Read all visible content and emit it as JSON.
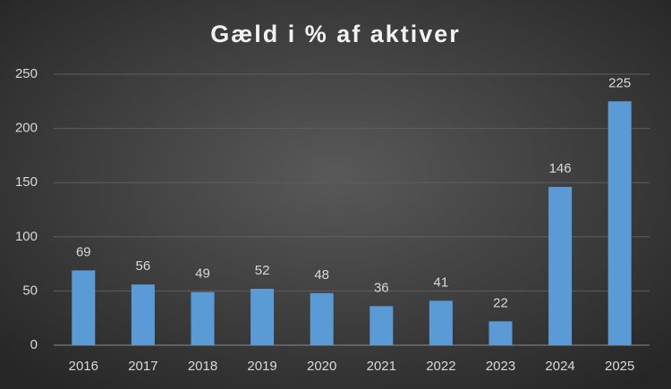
{
  "chart_data": {
    "type": "bar",
    "title": "Gæld i % af aktiver",
    "categories": [
      "2016",
      "2017",
      "2018",
      "2019",
      "2020",
      "2021",
      "2022",
      "2023",
      "2024",
      "2025"
    ],
    "values": [
      69,
      56,
      49,
      52,
      48,
      36,
      41,
      22,
      146,
      225
    ],
    "color": "#5b9bd5",
    "ylim": [
      0,
      250
    ],
    "yticks": [
      0,
      50,
      100,
      150,
      200,
      250
    ],
    "grid": true
  }
}
